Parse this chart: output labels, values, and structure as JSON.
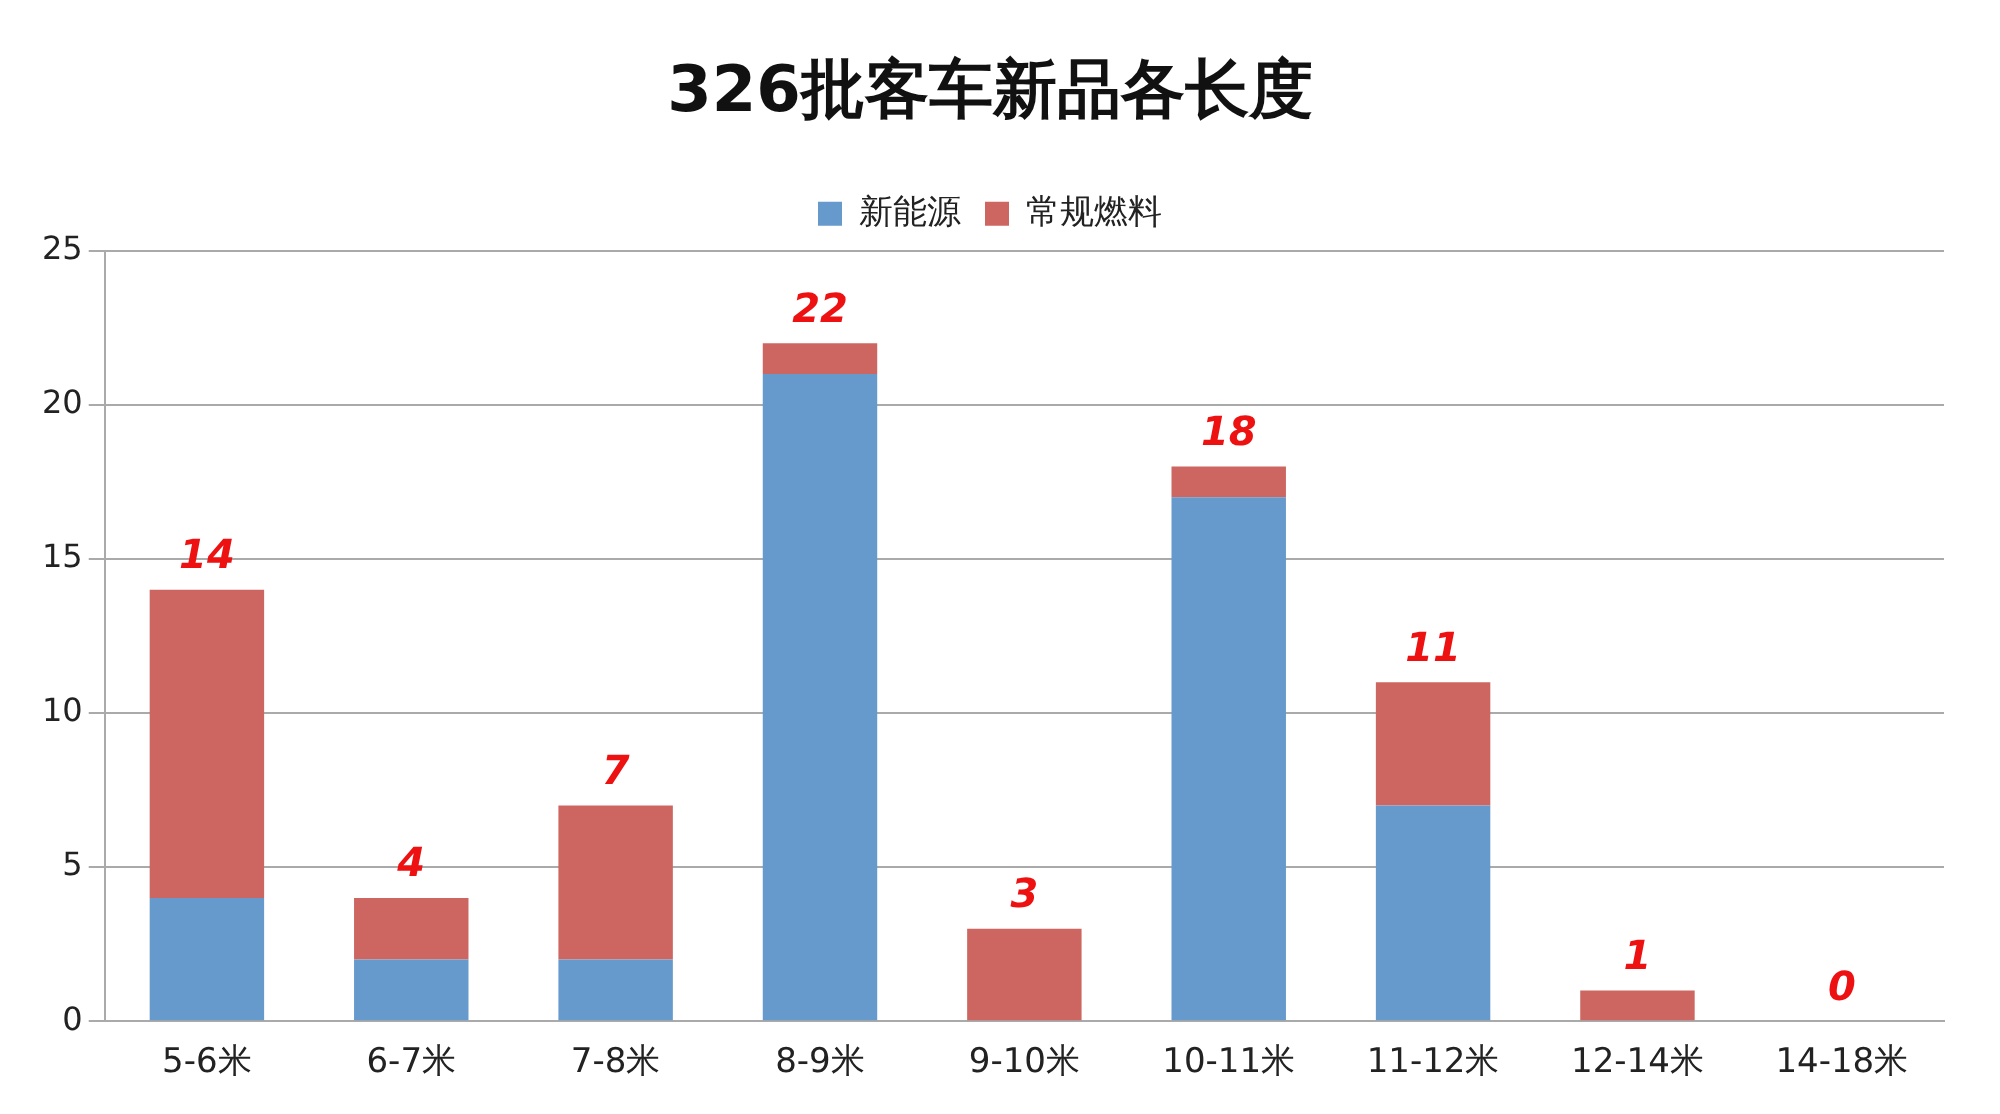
{
  "chart_data": {
    "type": "bar",
    "title": "326批客车新品各长度",
    "stacked": true,
    "categories": [
      "5-6米",
      "6-7米",
      "7-8米",
      "8-9米",
      "9-10米",
      "10-11米",
      "11-12米",
      "12-14米",
      "14-18米"
    ],
    "series": [
      {
        "name": "新能源",
        "color": "#6699cc",
        "values": [
          4,
          2,
          2,
          21,
          0,
          17,
          7,
          0,
          0
        ]
      },
      {
        "name": "常规燃料",
        "color": "#cd6660",
        "values": [
          10,
          2,
          5,
          1,
          3,
          1,
          4,
          1,
          0
        ]
      }
    ],
    "totals": [
      "14",
      "4",
      "7",
      "22",
      "3",
      "18",
      "11",
      "1",
      "0"
    ],
    "ylim": [
      0,
      25
    ],
    "yticks": [
      0,
      5,
      10,
      15,
      20,
      25
    ],
    "grid": "y",
    "legend": "top"
  }
}
